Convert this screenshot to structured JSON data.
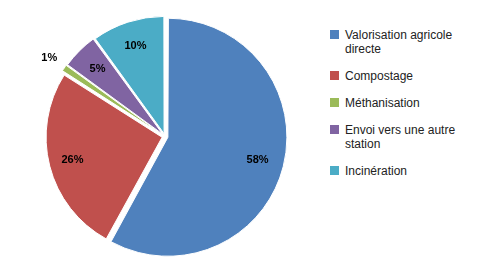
{
  "chart_data": {
    "type": "pie",
    "categories": [
      "Valorisation agricole directe",
      "Compostage",
      "Méthanisation",
      "Envoi vers une autre station",
      "Incinération"
    ],
    "values": [
      58,
      26,
      1,
      5,
      10
    ],
    "value_labels": [
      "58%",
      "26%",
      "1%",
      "5%",
      "10%"
    ],
    "colors": [
      "#4f81bd",
      "#c0504d",
      "#9bbb59",
      "#8064a2",
      "#4bacc6"
    ],
    "legend": "right",
    "data_labels": true
  }
}
